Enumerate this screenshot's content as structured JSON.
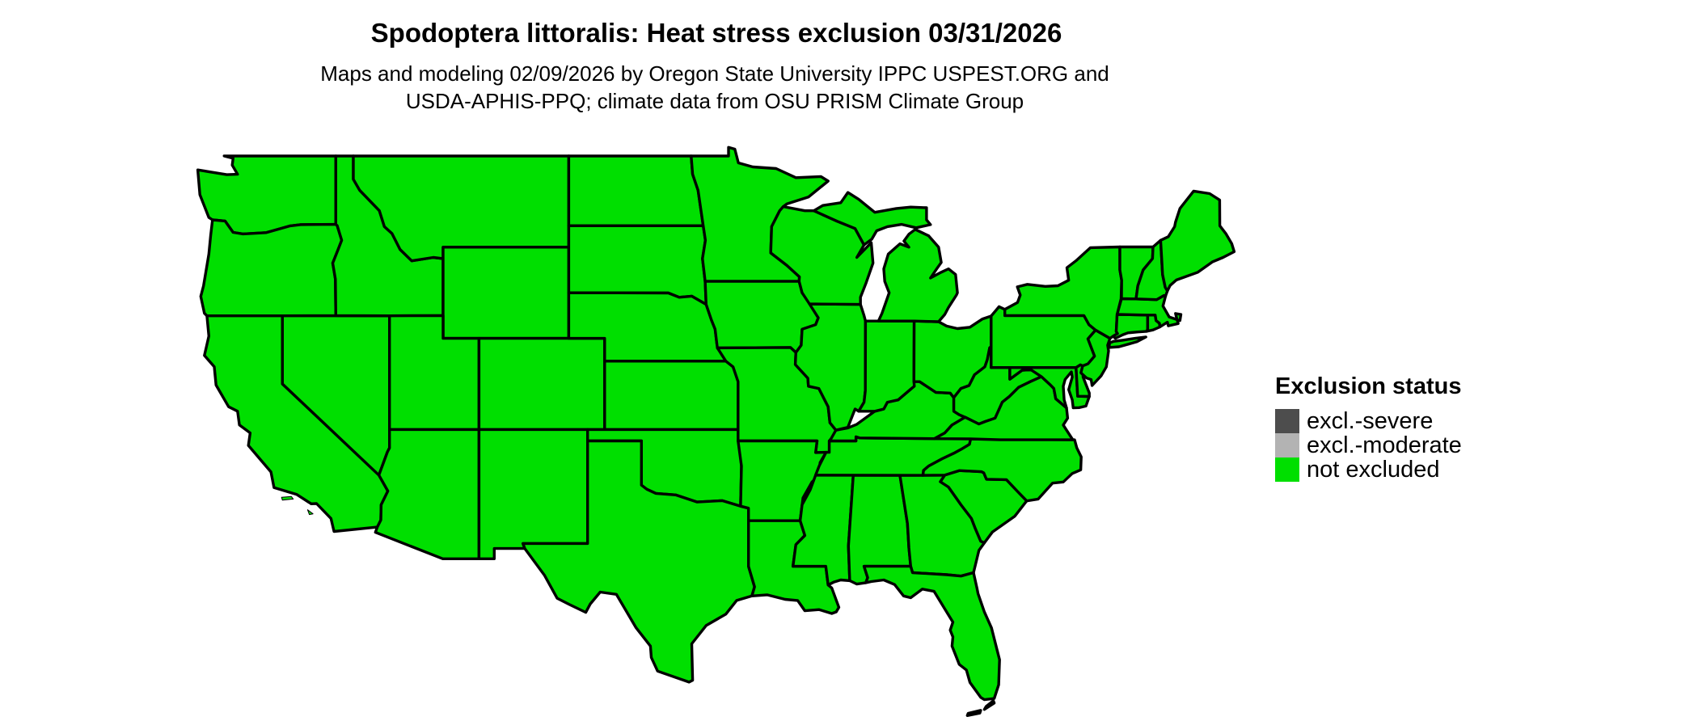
{
  "title": "Spodoptera littoralis: Heat stress exclusion 03/31/2026",
  "subtitle_line1": "Maps and modeling 02/09/2026 by Oregon State University IPPC USPEST.ORG and",
  "subtitle_line2": "USDA-APHIS-PPQ; climate data from OSU PRISM Climate Group",
  "legend": {
    "title": "Exclusion status",
    "items": [
      {
        "label": "excl.-severe",
        "color": "#4D4D4D"
      },
      {
        "label": "excl.-moderate",
        "color": "#B3B3B3"
      },
      {
        "label": "not excluded",
        "color": "#00DF00"
      }
    ]
  },
  "map": {
    "type": "choropleth",
    "region": "Contiguous United States",
    "border_color": "#000000",
    "background_color": "#FFFFFF",
    "all_states_status": "not excluded"
  }
}
